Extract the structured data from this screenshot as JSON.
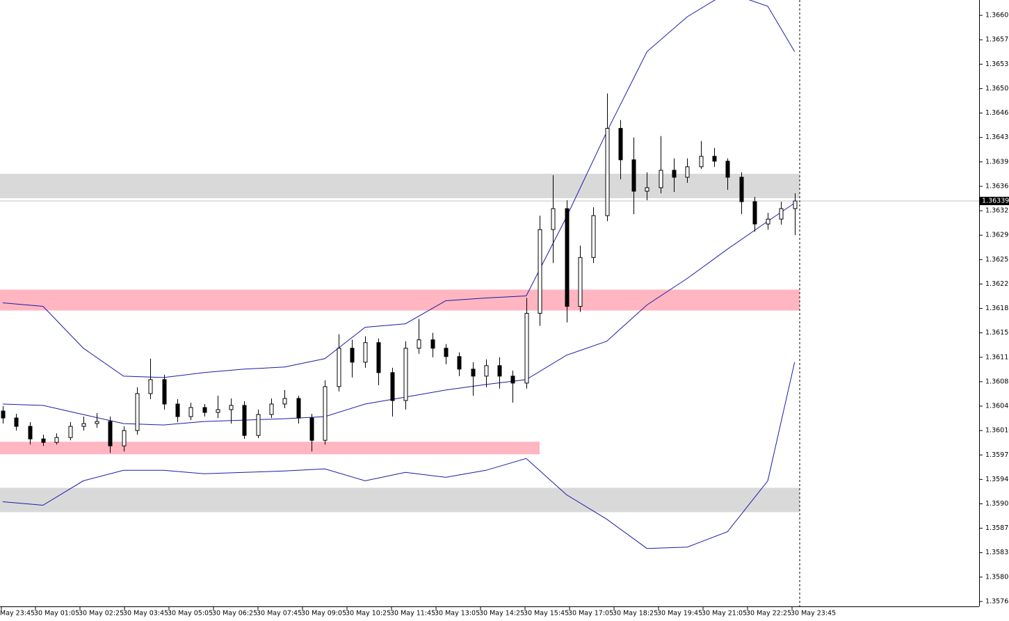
{
  "chart_data": {
    "type": "candlestick",
    "ylim": [
      1.35758,
      1.36627
    ],
    "yticks": [
      1.35765,
      {
        "value": 1.358,
        "label": "1.35800"
      },
      1.35835,
      {
        "value": 1.3587,
        "label": "1.35870"
      },
      1.35905,
      {
        "value": 1.3594,
        "label": "1.35940"
      },
      1.35975,
      {
        "value": 1.3601,
        "label": "1.36010"
      },
      1.36045,
      {
        "value": 1.3608,
        "label": "1.36080"
      },
      1.36115,
      {
        "value": 1.3615,
        "label": "1.36150"
      },
      1.36185,
      {
        "value": 1.3622,
        "label": "1.36220"
      },
      1.36255,
      {
        "value": 1.3629,
        "label": "1.36290"
      },
      1.36325,
      {
        "value": 1.3636,
        "label": "1.36360"
      },
      1.36395,
      {
        "value": 1.3643,
        "label": "1.36430"
      },
      1.36465,
      {
        "value": 1.365,
        "label": "1.36500"
      },
      1.36535,
      {
        "value": 1.3657,
        "label": "1.36570"
      },
      1.36605
    ],
    "xticks": [
      "May 23:45",
      "30 May 01:05",
      "30 May 02:25",
      "30 May 03:45",
      "30 May 05:05",
      "30 May 06:25",
      "30 May 07:45",
      "30 May 09:05",
      "30 May 10:25",
      "30 May 11:45",
      "30 May 13:05",
      "30 May 14:25",
      "30 May 15:45",
      "30 May 17:05",
      "30 May 18:25",
      "30 May 19:45",
      "30 May 21:05",
      "30 May 22:25",
      "30 May 23:45"
    ],
    "last_price": 1.36339,
    "candles": {
      "open": [
        1.36038,
        1.36028,
        1.36016,
        1.35998,
        1.35993,
        1.36,
        1.36016,
        1.3602,
        1.36023,
        1.35988,
        1.3601,
        1.36063,
        1.36083,
        1.36048,
        1.3603,
        1.36043,
        1.36036,
        1.3604,
        1.36046,
        1.36003,
        1.36033,
        1.36048,
        1.36056,
        1.36028,
        1.35996,
        1.36073,
        1.36128,
        1.36108,
        1.36136,
        1.36093,
        1.36053,
        1.36128,
        1.3614,
        1.36128,
        1.36116,
        1.36098,
        1.36088,
        1.36103,
        1.36088,
        1.36078,
        1.36178,
        1.36298,
        1.36328,
        1.36188,
        1.36258,
        1.36318,
        1.36443,
        1.36398,
        1.36353,
        1.36358,
        1.36383,
        1.36373,
        1.36388,
        1.36403,
        1.36396,
        1.36373,
        1.36338,
        1.36306,
        1.36313,
        1.36328
      ],
      "high": [
        1.36045,
        1.36034,
        1.36022,
        1.36004,
        1.36006,
        1.36022,
        1.3603,
        1.36035,
        1.3603,
        1.36016,
        1.36072,
        1.36113,
        1.3609,
        1.36055,
        1.3605,
        1.36048,
        1.3606,
        1.36056,
        1.36052,
        1.3604,
        1.36056,
        1.36068,
        1.3606,
        1.36034,
        1.36082,
        1.36148,
        1.3614,
        1.36145,
        1.36142,
        1.361,
        1.36138,
        1.3617,
        1.3615,
        1.36134,
        1.36122,
        1.36108,
        1.36112,
        1.36115,
        1.36096,
        1.362,
        1.36318,
        1.36376,
        1.3634,
        1.36275,
        1.3633,
        1.36493,
        1.36455,
        1.3643,
        1.3638,
        1.36432,
        1.364,
        1.364,
        1.36425,
        1.36415,
        1.364,
        1.3638,
        1.36345,
        1.36322,
        1.36338,
        1.3635
      ],
      "low": [
        1.3602,
        1.3601,
        1.3599,
        1.35988,
        1.3599,
        1.35996,
        1.3601,
        1.36014,
        1.35978,
        1.3598,
        1.36004,
        1.36055,
        1.3604,
        1.36022,
        1.36025,
        1.3603,
        1.36028,
        1.3602,
        1.35998,
        1.35999,
        1.36028,
        1.36042,
        1.3602,
        1.3598,
        1.3599,
        1.36066,
        1.36086,
        1.361,
        1.36075,
        1.3603,
        1.3604,
        1.3612,
        1.36115,
        1.36105,
        1.36088,
        1.3606,
        1.36072,
        1.3607,
        1.3605,
        1.3607,
        1.3616,
        1.3625,
        1.36165,
        1.3618,
        1.3625,
        1.3631,
        1.3637,
        1.3632,
        1.3634,
        1.3635,
        1.36352,
        1.36365,
        1.36385,
        1.36388,
        1.36355,
        1.3632,
        1.36295,
        1.36298,
        1.36305,
        1.3629
      ],
      "close": [
        1.36028,
        1.36016,
        1.35998,
        1.35993,
        1.36,
        1.36016,
        1.3602,
        1.36023,
        1.35988,
        1.3601,
        1.36063,
        1.36083,
        1.36048,
        1.3603,
        1.36043,
        1.36036,
        1.3604,
        1.36046,
        1.36003,
        1.36033,
        1.36048,
        1.36056,
        1.36028,
        1.35996,
        1.36073,
        1.36128,
        1.36108,
        1.36136,
        1.36093,
        1.36053,
        1.36128,
        1.3614,
        1.36128,
        1.36116,
        1.36098,
        1.36088,
        1.36103,
        1.36088,
        1.36078,
        1.36178,
        1.36298,
        1.36328,
        1.36188,
        1.36258,
        1.36318,
        1.36443,
        1.36398,
        1.36353,
        1.36358,
        1.36383,
        1.36373,
        1.36388,
        1.36403,
        1.36396,
        1.36373,
        1.36338,
        1.36306,
        1.36313,
        1.36328,
        1.36339
      ]
    },
    "bands": {
      "color": "#1a1aa6",
      "x": [
        0,
        3,
        6,
        9,
        12,
        15,
        18,
        21,
        24,
        27,
        30,
        33,
        36,
        39,
        42,
        45,
        48,
        51,
        54,
        57,
        59
      ],
      "upper": [
        1.36193,
        1.36188,
        1.36128,
        1.36088,
        1.36086,
        1.36093,
        1.36098,
        1.36101,
        1.36113,
        1.36158,
        1.36163,
        1.36196,
        1.362,
        1.36203,
        1.36316,
        1.36438,
        1.36553,
        1.36603,
        1.36638,
        1.36618,
        1.36553
      ],
      "middle": [
        1.36048,
        1.36046,
        1.36033,
        1.3602,
        1.36018,
        1.36023,
        1.36025,
        1.36027,
        1.3603,
        1.36048,
        1.36058,
        1.36068,
        1.36076,
        1.36083,
        1.36118,
        1.36138,
        1.3619,
        1.36228,
        1.3627,
        1.3631,
        1.36336
      ],
      "lower": [
        1.35908,
        1.35903,
        1.35938,
        1.35953,
        1.35953,
        1.35948,
        1.3595,
        1.35952,
        1.35955,
        1.35938,
        1.3595,
        1.35943,
        1.35953,
        1.3597,
        1.35918,
        1.35883,
        1.35841,
        1.35843,
        1.35865,
        1.35938,
        1.36108
      ]
    },
    "zones": [
      {
        "low": 1.36343,
        "high": 1.36378,
        "color": "#d9d9d9"
      },
      {
        "low": 1.36182,
        "high": 1.36212,
        "color": "#ffb6c1"
      },
      {
        "low": 1.35976,
        "high": 1.35994,
        "color": "#ffb6c1",
        "x_end": 40
      },
      {
        "low": 1.35893,
        "high": 1.35928,
        "color": "#d9d9d9"
      }
    ]
  }
}
